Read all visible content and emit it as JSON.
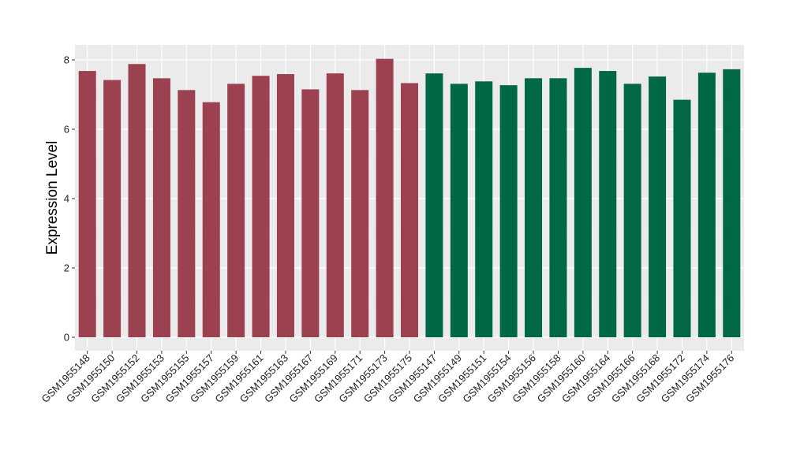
{
  "chart_data": {
    "type": "bar",
    "title": "",
    "xlabel": "",
    "ylabel": "Expression Level",
    "ylim": [
      0,
      8.4
    ],
    "yticks": [
      0,
      2,
      4,
      6,
      8
    ],
    "grid": true,
    "legend": "none",
    "categories": [
      "GSM1955148",
      "GSM1955150",
      "GSM1955152",
      "GSM1955153",
      "GSM1955155",
      "GSM1955157",
      "GSM1955159",
      "GSM1955161",
      "GSM1955163",
      "GSM1955167",
      "GSM1955169",
      "GSM1955171",
      "GSM1955173",
      "GSM1955175",
      "GSM1955147",
      "GSM1955149",
      "GSM1955151",
      "GSM1955154",
      "GSM1955156",
      "GSM1955158",
      "GSM1955160",
      "GSM1955164",
      "GSM1955166",
      "GSM1955168",
      "GSM1955172",
      "GSM1955174",
      "GSM1955176"
    ],
    "values": [
      7.68,
      7.42,
      7.88,
      7.47,
      7.13,
      6.78,
      7.31,
      7.54,
      7.59,
      7.15,
      7.61,
      7.13,
      8.03,
      7.33,
      7.61,
      7.31,
      7.38,
      7.27,
      7.47,
      7.47,
      7.77,
      7.68,
      7.31,
      7.52,
      6.85,
      7.63,
      7.73
    ],
    "group_count_first": 14,
    "colors": {
      "group1": "#9b4150",
      "group2": "#006846",
      "panel": "#ebebeb",
      "grid": "#ffffff"
    }
  }
}
